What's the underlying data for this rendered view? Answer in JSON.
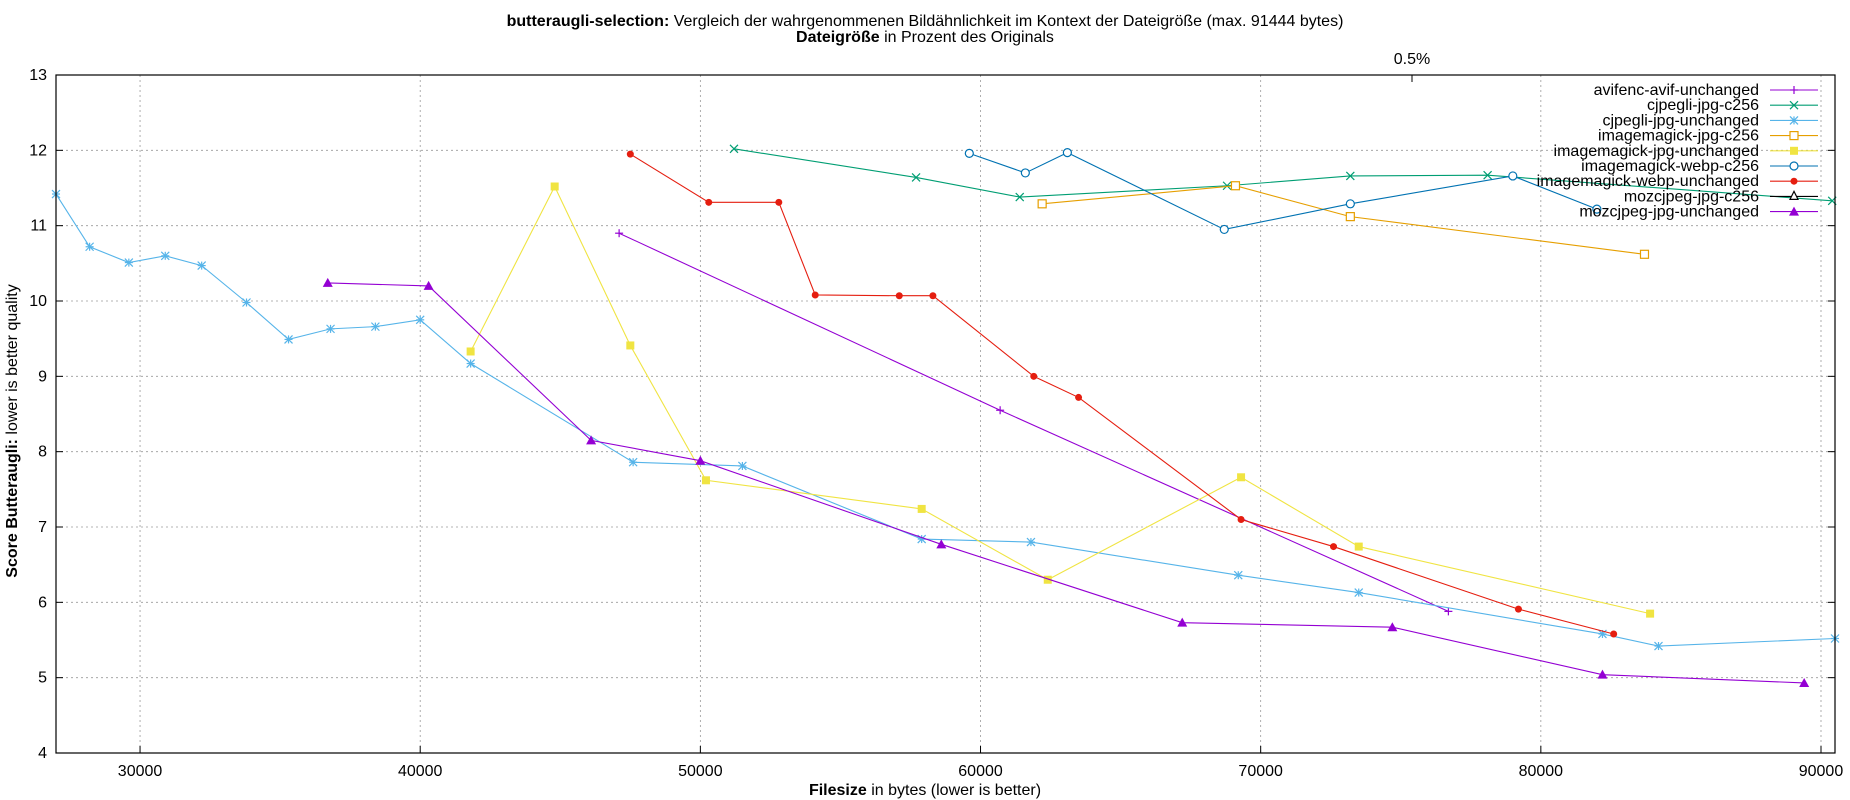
{
  "title_line1_bold": "butteraugli-selection:",
  "title_line1_rest": " Vergleich der wahrgenommenen Bildähnlichkeit im Kontext der Dateigröße (max. 91444 bytes)",
  "title_line2_bold": "Dateigröße",
  "title_line2_rest": " in Prozent des Originals",
  "top_axis_label": "0.5%",
  "xlabel_bold": "Filesize",
  "xlabel_rest": " in bytes (lower is better)",
  "ylabel_bold": "Score Butteraugli:",
  "ylabel_rest": " lower is better quality",
  "chart_data": {
    "type": "line",
    "xlim": [
      27000,
      90500
    ],
    "ylim": [
      4,
      13
    ],
    "xticks": [
      30000,
      40000,
      50000,
      60000,
      70000,
      80000,
      90000
    ],
    "yticks": [
      4,
      5,
      6,
      7,
      8,
      9,
      10,
      11,
      12,
      13
    ],
    "grid": true,
    "legend_position": "top-right",
    "series": [
      {
        "name": "avifenc-avif-unchanged",
        "color": "#9400d3",
        "marker": "plus",
        "x": [
          47100,
          60700,
          76700
        ],
        "y": [
          10.9,
          8.55,
          5.88
        ]
      },
      {
        "name": "cjpegli-jpg-c256",
        "color": "#009e73",
        "marker": "cross",
        "x": [
          51200,
          57700,
          61400,
          68800,
          73200,
          78100,
          90400
        ],
        "y": [
          12.02,
          11.64,
          11.38,
          11.53,
          11.66,
          11.67,
          11.33
        ]
      },
      {
        "name": "cjpegli-jpg-unchanged",
        "color": "#56b4e9",
        "marker": "star",
        "x": [
          27000,
          28200,
          29600,
          30900,
          32200,
          33800,
          35300,
          36800,
          38400,
          40000,
          41800,
          47600,
          51500,
          57900,
          61800,
          69200,
          73500,
          82200,
          84200,
          90500
        ],
        "y": [
          11.42,
          10.72,
          10.51,
          10.6,
          10.47,
          9.98,
          9.49,
          9.63,
          9.66,
          9.75,
          9.17,
          7.86,
          7.81,
          6.84,
          6.8,
          6.36,
          6.13,
          5.58,
          5.42,
          5.52
        ]
      },
      {
        "name": "imagemagick-jpg-c256",
        "color": "#e69f00",
        "marker": "open-square",
        "x": [
          62200,
          69100,
          73200,
          83700
        ],
        "y": [
          11.29,
          11.53,
          11.12,
          10.62
        ]
      },
      {
        "name": "imagemagick-jpg-unchanged",
        "color": "#f0e442",
        "marker": "filled-square",
        "x": [
          41800,
          44800,
          47500,
          50200,
          57900,
          62400,
          69300,
          73500,
          83900
        ],
        "y": [
          9.33,
          11.52,
          9.41,
          7.62,
          7.24,
          6.3,
          7.66,
          6.74,
          5.85
        ]
      },
      {
        "name": "imagemagick-webp-c256",
        "color": "#0072b2",
        "marker": "open-circle",
        "x": [
          59600,
          61600,
          63100,
          68700,
          73200,
          79000,
          82000
        ],
        "y": [
          11.96,
          11.7,
          11.97,
          10.95,
          11.29,
          11.66,
          11.22
        ]
      },
      {
        "name": "imagemagick-webp-unchanged",
        "color": "#e51e10",
        "marker": "filled-circle",
        "x": [
          47500,
          50300,
          52800,
          54100,
          57100,
          58300,
          61900,
          63500,
          69300,
          72600,
          79200,
          82600
        ],
        "y": [
          11.95,
          11.31,
          11.31,
          10.08,
          10.07,
          10.07,
          9.0,
          8.72,
          7.1,
          6.74,
          5.91,
          5.58
        ]
      },
      {
        "name": "mozcjpeg-jpg-c256",
        "color": "#000000",
        "marker": "open-triangle",
        "x": [],
        "y": []
      },
      {
        "name": "mozcjpeg-jpg-unchanged",
        "color": "#9400d3",
        "marker": "filled-triangle",
        "x": [
          36700,
          40300,
          46100,
          50000,
          58600,
          67200,
          74700,
          82200,
          89400
        ],
        "y": [
          10.24,
          10.2,
          8.15,
          7.88,
          6.77,
          5.73,
          5.67,
          5.04,
          4.93
        ]
      }
    ]
  }
}
